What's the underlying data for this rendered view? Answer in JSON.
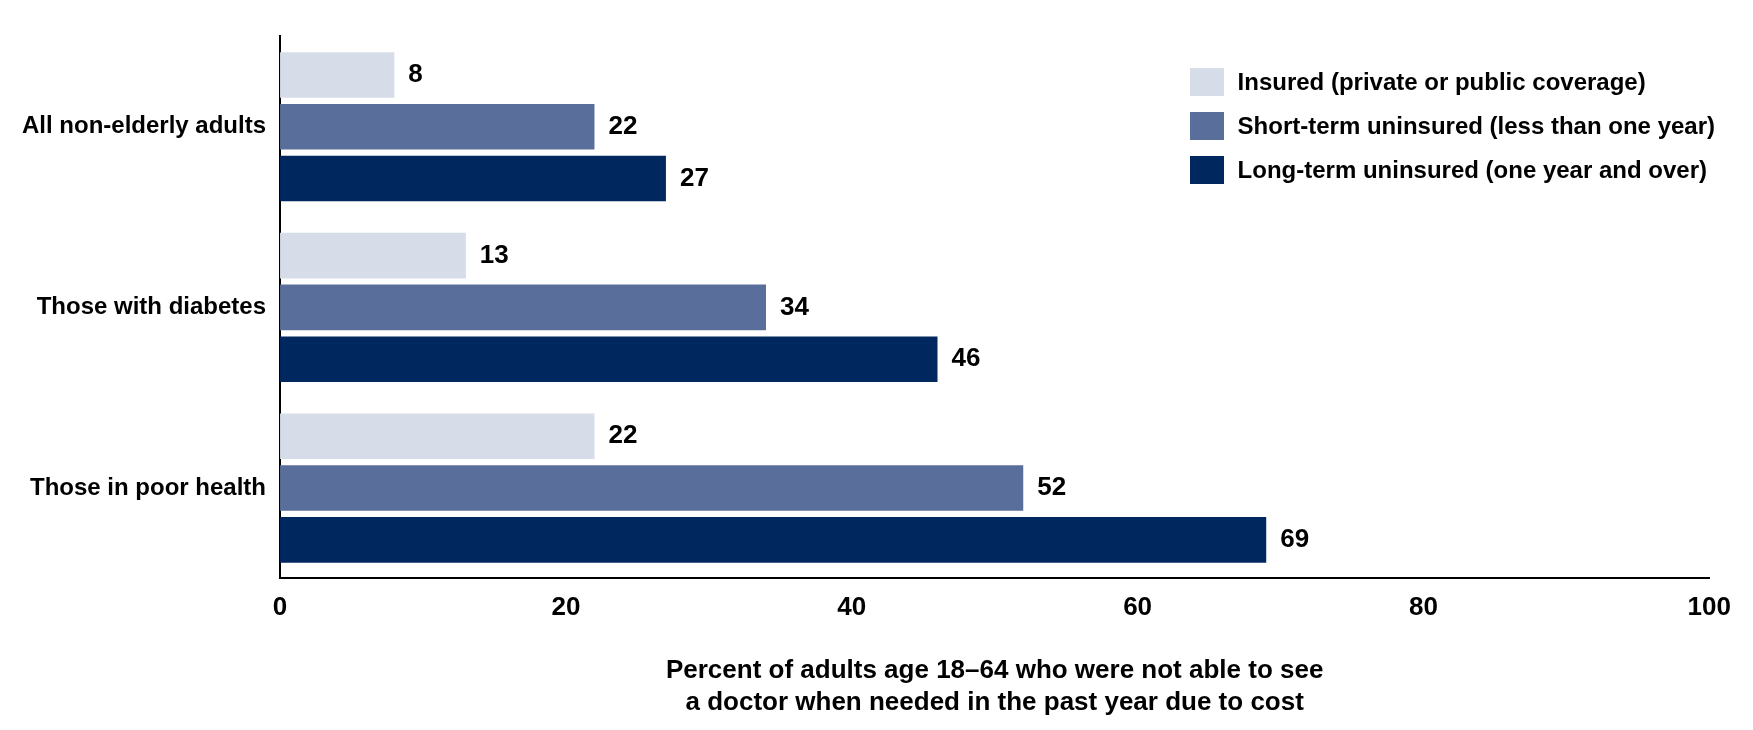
{
  "chart_data": {
    "type": "bar",
    "orientation": "horizontal",
    "categories": [
      "All non-elderly adults",
      "Those with diabetes",
      "Those in poor health"
    ],
    "series": [
      {
        "name": "Insured (private or public coverage)",
        "color": "#d6dce8",
        "values": [
          8,
          13,
          22
        ]
      },
      {
        "name": "Short-term uninsured (less than one year)",
        "color": "#5a6e9c",
        "values": [
          22,
          34,
          52
        ]
      },
      {
        "name": "Long-term uninsured (one year and over)",
        "color": "#00285e",
        "values": [
          27,
          46,
          69
        ]
      }
    ],
    "xlim": [
      0,
      100
    ],
    "xticks": [
      0,
      20,
      40,
      60,
      80,
      100
    ],
    "xlabel": "Percent of adults age 18–64 who were not able to see\na doctor when needed in the past year due to cost",
    "data_labels": true,
    "legend": "top right"
  }
}
